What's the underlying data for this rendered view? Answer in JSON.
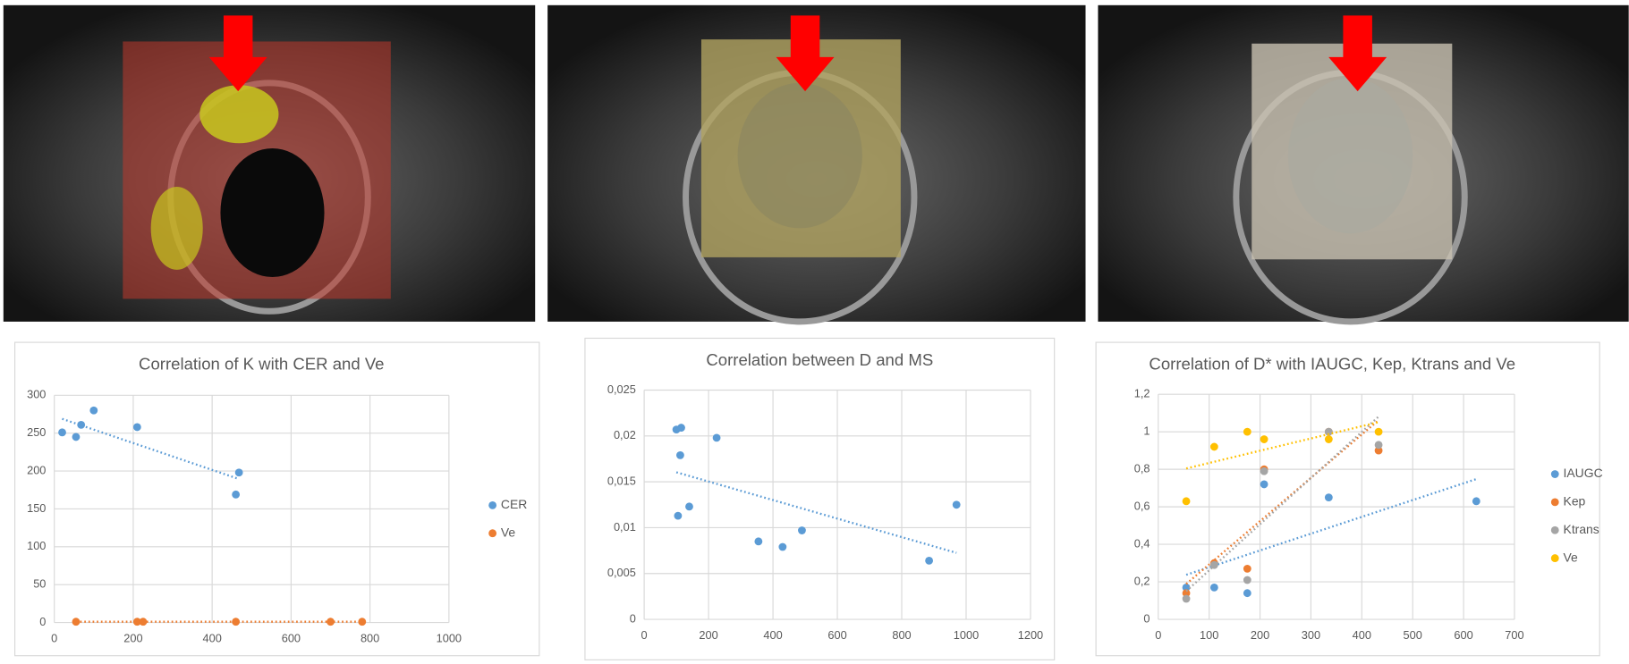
{
  "chart_data": [
    {
      "type": "scatter",
      "title": "Correlation of K with CER and Ve",
      "xlim": [
        0,
        1000
      ],
      "xticks": [
        0,
        200,
        400,
        600,
        800,
        1000
      ],
      "ylim": [
        0,
        300
      ],
      "yticks": [
        0,
        50,
        100,
        150,
        200,
        250,
        300
      ],
      "grid": true,
      "legend": "right",
      "trendline": true,
      "series": [
        {
          "name": "CER",
          "color": "#5b9bd5",
          "x": [
            20,
            55,
            68,
            100,
            210,
            460,
            468
          ],
          "values": [
            251,
            245,
            261,
            280,
            258,
            169,
            198
          ]
        },
        {
          "name": "Ve",
          "color": "#ed7d31",
          "x": [
            55,
            210,
            225,
            460,
            700,
            780
          ],
          "values": [
            1,
            1,
            1,
            1,
            1,
            1
          ]
        }
      ]
    },
    {
      "type": "scatter",
      "title": "Correlation between D and MS",
      "xlim": [
        0,
        1200
      ],
      "xticks": [
        0,
        200,
        400,
        600,
        800,
        1000,
        1200
      ],
      "ylim": [
        0,
        0.025
      ],
      "yticks": [
        0,
        {
          "value": 0.005,
          "label": "0,005"
        },
        {
          "value": 0.01,
          "label": "0,01"
        },
        {
          "value": 0.015,
          "label": "0,015"
        },
        {
          "value": 0.02,
          "label": "0,02"
        },
        {
          "value": 0.025,
          "label": "0,025"
        }
      ],
      "grid": true,
      "trendline": true,
      "series": [
        {
          "color": "#5b9bd5",
          "x": [
            100,
            115,
            112,
            225,
            140,
            105,
            355,
            430,
            490,
            885,
            970
          ],
          "values": [
            0.0207,
            0.0209,
            0.0179,
            0.0198,
            0.0123,
            0.0113,
            0.0085,
            0.0079,
            0.0097,
            0.0064,
            0.0125
          ]
        }
      ]
    },
    {
      "type": "scatter",
      "title": "Correlation of D* with IAUGC, Kep, Ktrans and Ve",
      "xlim": [
        0,
        700
      ],
      "xticks": [
        0,
        100,
        200,
        300,
        400,
        500,
        600,
        700
      ],
      "ylim": [
        0,
        1.2
      ],
      "yticks": [
        0,
        {
          "value": 0.2,
          "label": "0,2"
        },
        {
          "value": 0.4,
          "label": "0,4"
        },
        {
          "value": 0.6,
          "label": "0,6"
        },
        {
          "value": 0.8,
          "label": "0,8"
        },
        1,
        {
          "value": 1.2,
          "label": "1,2"
        }
      ],
      "grid": true,
      "legend": "right",
      "trendline": true,
      "series": [
        {
          "name": "IAUGC",
          "color": "#5b9bd5",
          "x": [
            55,
            110,
            175,
            208,
            335,
            625
          ],
          "values": [
            0.17,
            0.17,
            0.14,
            0.72,
            0.65,
            0.63
          ]
        },
        {
          "name": "Kep",
          "color": "#ed7d31",
          "x": [
            55,
            110,
            175,
            208,
            335,
            433
          ],
          "values": [
            0.14,
            0.3,
            0.27,
            0.8,
            1.0,
            0.9
          ]
        },
        {
          "name": "Ktrans",
          "color": "#a5a5a5",
          "x": [
            55,
            110,
            175,
            208,
            335,
            433
          ],
          "values": [
            0.11,
            0.29,
            0.21,
            0.79,
            1.0,
            0.93
          ]
        },
        {
          "name": "Ve",
          "color": "#ffc000",
          "x": [
            55,
            110,
            175,
            208,
            335,
            433
          ],
          "values": [
            0.63,
            0.92,
            1.0,
            0.96,
            0.96,
            1.0
          ]
        }
      ]
    }
  ]
}
